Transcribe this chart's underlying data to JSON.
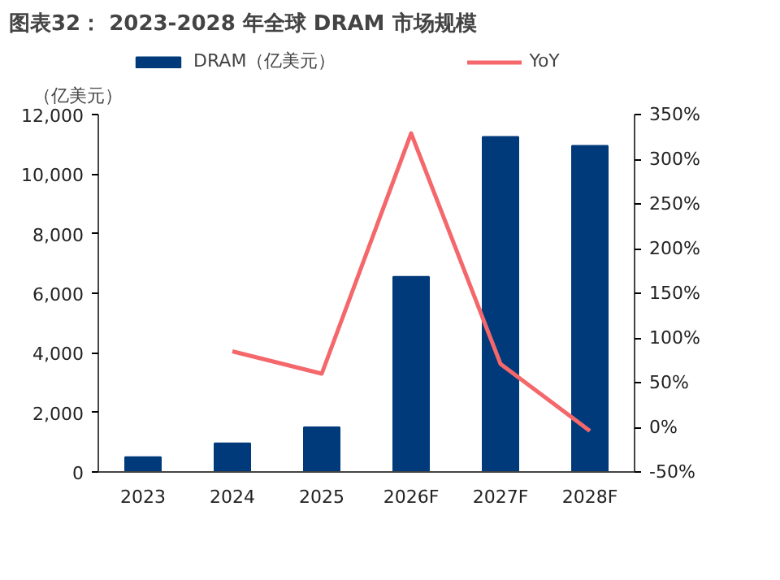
{
  "chart_data": {
    "type": "bar",
    "title": "图表32：  2023-2028 年全球 DRAM 市场规模",
    "ylabel": "（亿美元）",
    "categories": [
      "2023",
      "2024",
      "2025",
      "2026F",
      "2027F",
      "2028F"
    ],
    "series": [
      {
        "name": "DRAM（亿美元）",
        "color": "#003a7a",
        "values": [
          500,
          960,
          1500,
          6550,
          11250,
          10950
        ]
      },
      {
        "name": "YoY",
        "type": "line",
        "axis": "y2",
        "color": "#f4676b",
        "values": [
          null,
          85,
          60,
          329,
          71,
          -4
        ]
      }
    ],
    "ylim": [
      0,
      12000
    ],
    "yticks": [
      {
        "value": 0,
        "label": "0"
      },
      {
        "value": 2000,
        "label": "2,000"
      },
      {
        "value": 4000,
        "label": "4,000"
      },
      {
        "value": 6000,
        "label": "6,000"
      },
      {
        "value": 8000,
        "label": "8,000"
      },
      {
        "value": 10000,
        "label": "10,000"
      },
      {
        "value": 12000,
        "label": "12,000"
      }
    ],
    "y2lim": [
      -50,
      350
    ],
    "y2ticks": [
      {
        "value": -50,
        "label": "-50%"
      },
      {
        "value": 0,
        "label": "0%"
      },
      {
        "value": 50,
        "label": "50%"
      },
      {
        "value": 100,
        "label": "100%"
      },
      {
        "value": 150,
        "label": "150%"
      },
      {
        "value": 200,
        "label": "200%"
      },
      {
        "value": 250,
        "label": "250%"
      },
      {
        "value": 300,
        "label": "300%"
      },
      {
        "value": 350,
        "label": "350%"
      }
    ],
    "legend": "top",
    "grid": false
  }
}
